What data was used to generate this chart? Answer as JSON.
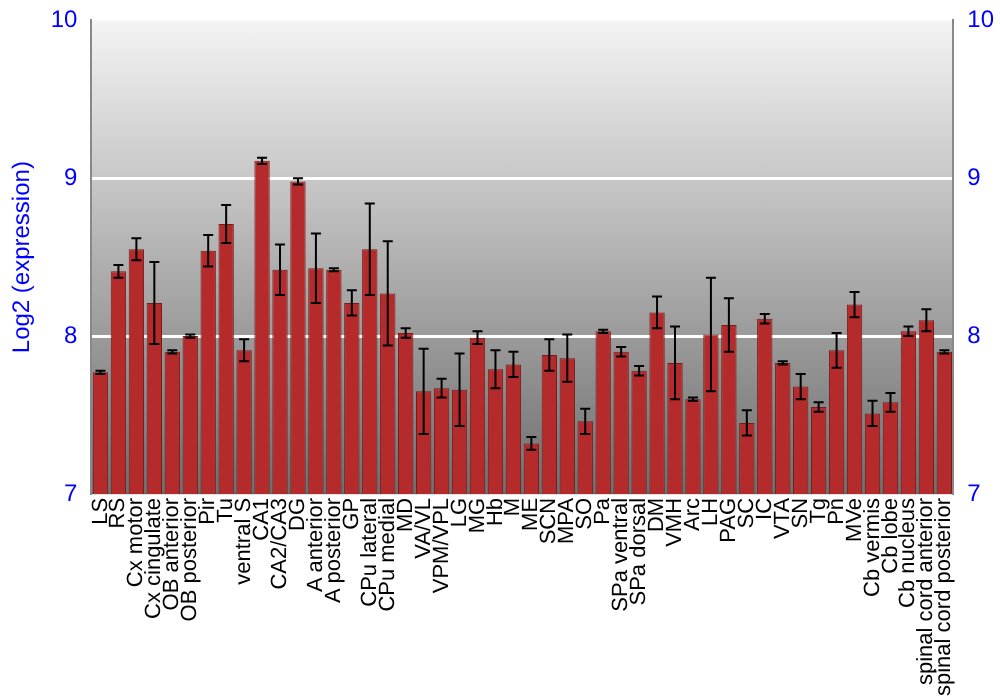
{
  "chart_data": {
    "type": "bar",
    "ylabel": "Log2 (expression)",
    "categories": [
      "LS",
      "RS",
      "Cx motor",
      "Cx cingulate",
      "OB anterior",
      "OB posterior",
      "Pir",
      "Tu",
      "ventral S",
      "CA1",
      "CA2/CA3",
      "DG",
      "A anterior",
      "A posterior",
      "GP",
      "CPu lateral",
      "CPu medial",
      "MD",
      "VA/VL",
      "VPM/VPL",
      "LG",
      "MG",
      "Hb",
      "M",
      "ME",
      "SCN",
      "MPA",
      "SO",
      "Pa",
      "SPa ventral",
      "SPa dorsal",
      "DM",
      "VMH",
      "Arc",
      "LH",
      "PAG",
      "SC",
      "IC",
      "VTA",
      "SN",
      "Tg",
      "Pn",
      "MVe",
      "Cb vermis",
      "Cb lobe",
      "Cb nucleus",
      "spinal cord anterior",
      "spinal cord posterior"
    ],
    "values": [
      7.77,
      8.41,
      8.55,
      8.21,
      7.9,
      8.0,
      8.54,
      8.71,
      7.91,
      9.11,
      8.42,
      8.98,
      8.43,
      8.42,
      8.21,
      8.55,
      8.27,
      8.02,
      7.65,
      7.67,
      7.66,
      7.99,
      7.79,
      7.82,
      7.32,
      7.88,
      7.86,
      7.46,
      8.03,
      7.9,
      7.78,
      8.15,
      7.83,
      7.6,
      8.01,
      8.07,
      7.45,
      8.11,
      7.83,
      7.68,
      7.55,
      7.91,
      8.2,
      7.51,
      7.58,
      8.03,
      8.1,
      7.9
    ],
    "errors": [
      0.01,
      0.04,
      0.07,
      0.26,
      0.01,
      0.01,
      0.1,
      0.12,
      0.07,
      0.02,
      0.16,
      0.02,
      0.22,
      0.01,
      0.08,
      0.29,
      0.33,
      0.03,
      0.27,
      0.06,
      0.23,
      0.04,
      0.12,
      0.08,
      0.04,
      0.1,
      0.15,
      0.08,
      0.01,
      0.03,
      0.03,
      0.1,
      0.23,
      0.01,
      0.36,
      0.17,
      0.08,
      0.03,
      0.01,
      0.08,
      0.03,
      0.11,
      0.08,
      0.08,
      0.06,
      0.03,
      0.07,
      0.01
    ],
    "color": "#b52b2b",
    "ylim": [
      7,
      10
    ],
    "yticks": [
      7,
      8,
      9,
      10
    ],
    "y2lim": [
      7,
      10
    ],
    "y2ticks": [
      7,
      8,
      9,
      10
    ],
    "grid": "y"
  }
}
